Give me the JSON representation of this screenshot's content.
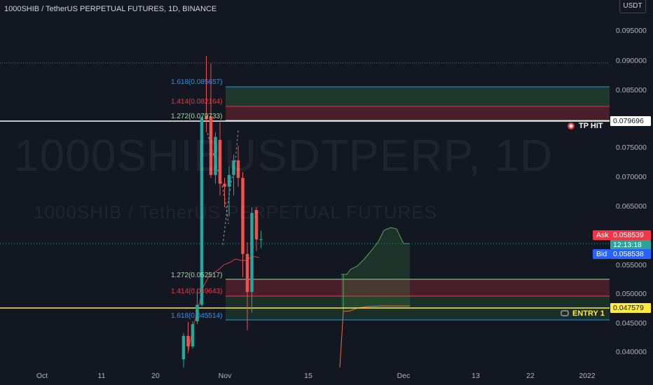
{
  "chart": {
    "title": "1000SHIB / TetherUS PERPETUAL FUTURES, 1D, BINANCE",
    "watermark_symbol": "1000SHIBUSDTPERP, 1D",
    "watermark_description": "1000SHIB / TetherUS PERPETUAL FUTURES",
    "currency": "USDT"
  },
  "price_axis": {
    "ticks": [
      "0.095000",
      "0.090000",
      "0.085000",
      "0.075000",
      "0.070000",
      "0.065000",
      "0.055000",
      "0.050000",
      "0.045000",
      "0.040000"
    ]
  },
  "time_axis": {
    "ticks": [
      "Oct",
      "11",
      "20",
      "Nov",
      "15",
      "Dec",
      "13",
      "22",
      "2022"
    ]
  },
  "axis_tags": {
    "tp_price": "0.079696",
    "ask_price": "0.058539",
    "countdown": "12:13:18",
    "bid_price": "0.058538",
    "entry_price": "0.047579",
    "ask_label": "Ask",
    "bid_label": "Bid"
  },
  "markers": {
    "tp_hit": "TP HIT",
    "entry": "ENTRY 1"
  },
  "fib_upper": [
    "1.618(0.085657)",
    "1.414(0.082164)",
    "1.272(0.079733)"
  ],
  "fib_lower": [
    "1.272(0.052517)",
    "1.414(0.049643)",
    "1.618(0.045514)"
  ],
  "colors": {
    "background": "#131722",
    "bull": "#26a69a",
    "bear": "#ef5350",
    "fib_1618": "#2196f3",
    "fib_1414": "#f23645",
    "fib_1272": "#a5d6a7",
    "tp_line": "#ffffff",
    "entry_line": "#ffeb3b",
    "ask": "#f23645",
    "bid": "#2962ff",
    "countdown": "#26a69a"
  },
  "chart_data": {
    "type": "candlestick",
    "ylim": [
      0.0366,
      0.0994
    ],
    "candles": [
      {
        "o": 0.038,
        "h": 0.0425,
        "l": 0.0366,
        "c": 0.042
      },
      {
        "o": 0.042,
        "h": 0.0444,
        "l": 0.0395,
        "c": 0.0402
      },
      {
        "o": 0.0402,
        "h": 0.0445,
        "l": 0.0398,
        "c": 0.044
      },
      {
        "o": 0.0445,
        "h": 0.05,
        "l": 0.044,
        "c": 0.0473
      },
      {
        "o": 0.0473,
        "h": 0.0795,
        "l": 0.047,
        "c": 0.0793
      },
      {
        "o": 0.0795,
        "h": 0.0898,
        "l": 0.0768,
        "c": 0.079
      },
      {
        "o": 0.0795,
        "h": 0.0885,
        "l": 0.069,
        "c": 0.0695
      },
      {
        "o": 0.0695,
        "h": 0.0768,
        "l": 0.068,
        "c": 0.076
      },
      {
        "o": 0.0755,
        "h": 0.0785,
        "l": 0.066,
        "c": 0.068
      },
      {
        "o": 0.068,
        "h": 0.069,
        "l": 0.064,
        "c": 0.0675
      },
      {
        "o": 0.0675,
        "h": 0.071,
        "l": 0.0625,
        "c": 0.0695
      },
      {
        "o": 0.0695,
        "h": 0.073,
        "l": 0.066,
        "c": 0.072
      },
      {
        "o": 0.072,
        "h": 0.0745,
        "l": 0.0675,
        "c": 0.069
      },
      {
        "o": 0.069,
        "h": 0.07,
        "l": 0.052,
        "c": 0.056
      },
      {
        "o": 0.056,
        "h": 0.058,
        "l": 0.043,
        "c": 0.0495
      },
      {
        "o": 0.0495,
        "h": 0.064,
        "l": 0.046,
        "c": 0.063
      },
      {
        "o": 0.0635,
        "h": 0.064,
        "l": 0.0565,
        "c": 0.0585
      },
      {
        "o": 0.0585,
        "h": 0.06,
        "l": 0.057,
        "c": 0.0585
      }
    ]
  }
}
